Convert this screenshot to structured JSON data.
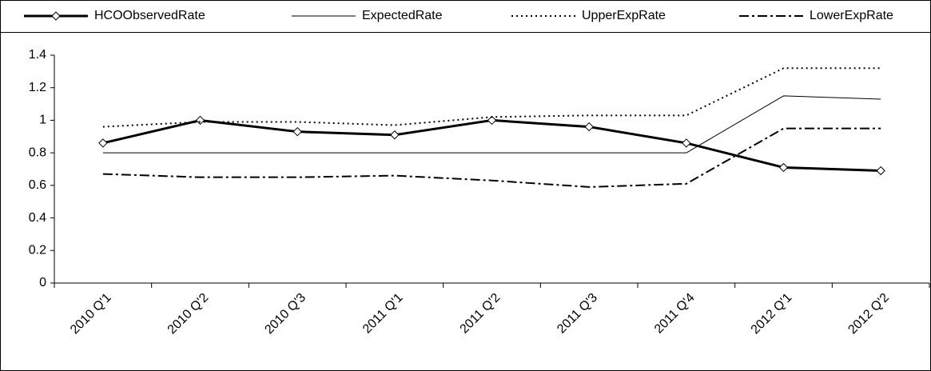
{
  "chart_data": {
    "type": "line",
    "categories": [
      "2010 Q'1",
      "2010 Q'2",
      "2010 Q'3",
      "2011 Q'1",
      "2011 Q'2",
      "2011 Q'3",
      "2011 Q'4",
      "2012 Q'1",
      "2012 Q'2"
    ],
    "series": [
      {
        "name": "HCOObservedRate",
        "color": "#000000",
        "style": "solid",
        "line_width": 3,
        "marker": "diamond",
        "values": [
          0.86,
          1.0,
          0.93,
          0.91,
          1.0,
          0.96,
          0.86,
          0.71,
          0.69
        ]
      },
      {
        "name": "ExpectedRate",
        "color": "#000000",
        "style": "solid",
        "line_width": 1,
        "values": [
          0.8,
          0.8,
          0.8,
          0.8,
          0.8,
          0.8,
          0.8,
          1.15,
          1.13
        ]
      },
      {
        "name": "UpperExpRate",
        "color": "#000000",
        "style": "dotted",
        "line_width": 2,
        "values": [
          0.96,
          0.99,
          0.99,
          0.97,
          1.02,
          1.03,
          1.03,
          1.32,
          1.32
        ]
      },
      {
        "name": "LowerExpRate",
        "color": "#000000",
        "style": "dashdot",
        "line_width": 2,
        "values": [
          0.67,
          0.65,
          0.65,
          0.66,
          0.63,
          0.59,
          0.61,
          0.95,
          0.95
        ]
      }
    ],
    "ylim": [
      0,
      1.4
    ],
    "yticks": [
      0,
      0.2,
      0.4,
      0.6,
      0.8,
      1,
      1.2,
      1.4
    ]
  }
}
